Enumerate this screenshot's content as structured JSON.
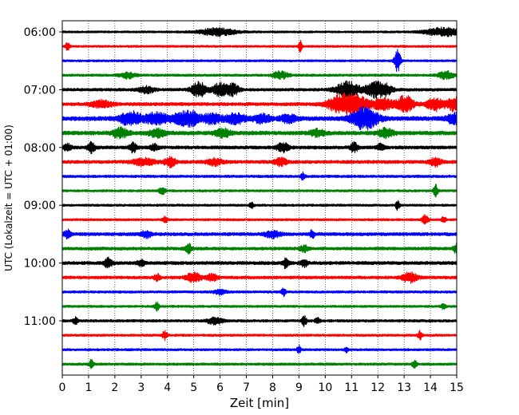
{
  "chart_data": {
    "type": "line",
    "chart_kind": "helicorder (seismogram drum plot)",
    "title": "",
    "xlabel": "Zeit  [min]",
    "ylabel": "UTC (Lokalzeit = UTC + 01:00)",
    "xlim": [
      0,
      15
    ],
    "x_ticks": [
      "0",
      "1",
      "2",
      "3",
      "4",
      "5",
      "6",
      "7",
      "8",
      "9",
      "10",
      "11",
      "12",
      "13",
      "14",
      "15"
    ],
    "y_ticks": [
      "06:00",
      "07:00",
      "08:00",
      "09:00",
      "10:00",
      "11:00"
    ],
    "trace_minutes_per_line": 15,
    "grid": "vertical dotted lines at each minute",
    "legend": "none",
    "color_cycle": [
      "#000000",
      "#ff0000",
      "#0000ff",
      "#008000"
    ],
    "traces": [
      {
        "start": "06:00",
        "color": "#000000",
        "amp": 1.3,
        "events": [
          {
            "t": 5.9,
            "a": 4.5,
            "w": 0.5
          },
          {
            "t": 14.5,
            "a": 5.0,
            "w": 0.5
          }
        ]
      },
      {
        "start": "06:15",
        "color": "#ff0000",
        "amp": 1.3,
        "events": [
          {
            "t": 0.2,
            "a": 5.5,
            "w": 0.05
          },
          {
            "t": 9.05,
            "a": 7.5,
            "w": 0.05
          }
        ]
      },
      {
        "start": "06:30",
        "color": "#0000ff",
        "amp": 1.3,
        "events": [
          {
            "t": 12.75,
            "a": 14.0,
            "w": 0.08
          }
        ]
      },
      {
        "start": "06:45",
        "color": "#008000",
        "amp": 1.5,
        "events": [
          {
            "t": 2.5,
            "a": 3.5,
            "w": 0.2
          },
          {
            "t": 8.3,
            "a": 4.5,
            "w": 0.2
          },
          {
            "t": 14.6,
            "a": 5.0,
            "w": 0.2
          }
        ]
      },
      {
        "start": "07:00",
        "color": "#000000",
        "amp": 1.8,
        "events": [
          {
            "t": 3.2,
            "a": 4.0,
            "w": 0.2
          },
          {
            "t": 5.2,
            "a": 9.0,
            "w": 0.2
          },
          {
            "t": 6.0,
            "a": 8.0,
            "w": 0.2
          },
          {
            "t": 6.5,
            "a": 7.0,
            "w": 0.15
          },
          {
            "t": 10.85,
            "a": 10.0,
            "w": 0.3
          },
          {
            "t": 11.9,
            "a": 9.0,
            "w": 0.25
          },
          {
            "t": 12.3,
            "a": 5.0,
            "w": 0.2
          }
        ]
      },
      {
        "start": "07:15",
        "color": "#ff0000",
        "amp": 2.0,
        "events": [
          {
            "t": 1.5,
            "a": 4.0,
            "w": 0.3
          },
          {
            "t": 10.6,
            "a": 11.0,
            "w": 0.35
          },
          {
            "t": 11.2,
            "a": 9.0,
            "w": 0.3
          },
          {
            "t": 12.2,
            "a": 7.0,
            "w": 0.3
          },
          {
            "t": 13.0,
            "a": 5.0,
            "w": 0.2
          },
          {
            "t": 13.1,
            "a": 6.0,
            "w": 0.2
          },
          {
            "t": 14.2,
            "a": 8.0,
            "w": 0.25
          },
          {
            "t": 14.95,
            "a": 9.0,
            "w": 0.2
          }
        ]
      },
      {
        "start": "07:30",
        "color": "#0000ff",
        "amp": 2.6,
        "events": [
          {
            "t": 2.6,
            "a": 8.0,
            "w": 0.3
          },
          {
            "t": 3.6,
            "a": 7.0,
            "w": 0.3
          },
          {
            "t": 4.6,
            "a": 7.0,
            "w": 0.3
          },
          {
            "t": 5.0,
            "a": 5.0,
            "w": 0.2
          },
          {
            "t": 5.7,
            "a": 6.0,
            "w": 0.25
          },
          {
            "t": 6.6,
            "a": 6.0,
            "w": 0.25
          },
          {
            "t": 7.6,
            "a": 5.0,
            "w": 0.25
          },
          {
            "t": 8.6,
            "a": 5.0,
            "w": 0.2
          },
          {
            "t": 11.5,
            "a": 13.0,
            "w": 0.35
          },
          {
            "t": 14.9,
            "a": 6.0,
            "w": 0.2
          }
        ]
      },
      {
        "start": "07:45",
        "color": "#008000",
        "amp": 2.4,
        "events": [
          {
            "t": 2.2,
            "a": 6.0,
            "w": 0.2
          },
          {
            "t": 3.6,
            "a": 5.0,
            "w": 0.2
          },
          {
            "t": 6.1,
            "a": 5.0,
            "w": 0.2
          },
          {
            "t": 9.7,
            "a": 4.0,
            "w": 0.2
          },
          {
            "t": 12.3,
            "a": 5.0,
            "w": 0.2
          }
        ]
      },
      {
        "start": "08:00",
        "color": "#000000",
        "amp": 2.0,
        "events": [
          {
            "t": 0.2,
            "a": 4.0,
            "w": 0.1
          },
          {
            "t": 1.1,
            "a": 6.0,
            "w": 0.1
          },
          {
            "t": 2.7,
            "a": 6.0,
            "w": 0.1
          },
          {
            "t": 3.5,
            "a": 4.0,
            "w": 0.1
          },
          {
            "t": 8.4,
            "a": 6.0,
            "w": 0.15
          },
          {
            "t": 11.1,
            "a": 6.0,
            "w": 0.1
          },
          {
            "t": 12.1,
            "a": 4.0,
            "w": 0.1
          }
        ]
      },
      {
        "start": "08:15",
        "color": "#ff0000",
        "amp": 2.0,
        "events": [
          {
            "t": 3.1,
            "a": 4.0,
            "w": 0.3
          },
          {
            "t": 4.1,
            "a": 6.0,
            "w": 0.15
          },
          {
            "t": 5.8,
            "a": 4.0,
            "w": 0.2
          },
          {
            "t": 8.3,
            "a": 5.0,
            "w": 0.15
          },
          {
            "t": 14.2,
            "a": 5.0,
            "w": 0.15
          }
        ]
      },
      {
        "start": "08:30",
        "color": "#0000ff",
        "amp": 1.6,
        "events": [
          {
            "t": 9.15,
            "a": 5.0,
            "w": 0.05
          }
        ]
      },
      {
        "start": "08:45",
        "color": "#008000",
        "amp": 1.4,
        "events": [
          {
            "t": 3.8,
            "a": 5.0,
            "w": 0.08
          },
          {
            "t": 14.2,
            "a": 8.0,
            "w": 0.06
          }
        ]
      },
      {
        "start": "09:00",
        "color": "#000000",
        "amp": 1.4,
        "events": [
          {
            "t": 7.2,
            "a": 5.0,
            "w": 0.05
          },
          {
            "t": 12.75,
            "a": 6.0,
            "w": 0.05
          }
        ]
      },
      {
        "start": "09:15",
        "color": "#ff0000",
        "amp": 1.4,
        "events": [
          {
            "t": 3.9,
            "a": 4.0,
            "w": 0.06
          },
          {
            "t": 13.8,
            "a": 6.0,
            "w": 0.08
          },
          {
            "t": 14.5,
            "a": 4.0,
            "w": 0.06
          }
        ]
      },
      {
        "start": "09:30",
        "color": "#0000ff",
        "amp": 2.0,
        "events": [
          {
            "t": 0.2,
            "a": 5.0,
            "w": 0.08
          },
          {
            "t": 3.2,
            "a": 4.0,
            "w": 0.15
          },
          {
            "t": 8.0,
            "a": 4.0,
            "w": 0.2
          },
          {
            "t": 9.5,
            "a": 5.0,
            "w": 0.06
          }
        ]
      },
      {
        "start": "09:45",
        "color": "#008000",
        "amp": 1.9,
        "events": [
          {
            "t": 4.8,
            "a": 6.0,
            "w": 0.08
          },
          {
            "t": 9.2,
            "a": 4.0,
            "w": 0.1
          },
          {
            "t": 14.95,
            "a": 6.0,
            "w": 0.06
          }
        ]
      },
      {
        "start": "10:00",
        "color": "#000000",
        "amp": 2.0,
        "events": [
          {
            "t": 1.75,
            "a": 6.0,
            "w": 0.1
          },
          {
            "t": 3.0,
            "a": 3.5,
            "w": 0.1
          },
          {
            "t": 8.5,
            "a": 6.0,
            "w": 0.08
          },
          {
            "t": 9.2,
            "a": 4.0,
            "w": 0.1
          }
        ]
      },
      {
        "start": "10:15",
        "color": "#ff0000",
        "amp": 1.8,
        "events": [
          {
            "t": 3.6,
            "a": 4.0,
            "w": 0.08
          },
          {
            "t": 5.0,
            "a": 5.5,
            "w": 0.2
          },
          {
            "t": 5.7,
            "a": 4.0,
            "w": 0.15
          },
          {
            "t": 13.2,
            "a": 6.0,
            "w": 0.2
          }
        ]
      },
      {
        "start": "10:30",
        "color": "#0000ff",
        "amp": 1.5,
        "events": [
          {
            "t": 8.4,
            "a": 5.0,
            "w": 0.06
          },
          {
            "t": 6.0,
            "a": 3.0,
            "w": 0.15
          }
        ]
      },
      {
        "start": "10:45",
        "color": "#008000",
        "amp": 1.4,
        "events": [
          {
            "t": 3.6,
            "a": 5.0,
            "w": 0.06
          },
          {
            "t": 14.5,
            "a": 4.0,
            "w": 0.06
          }
        ]
      },
      {
        "start": "11:00",
        "color": "#000000",
        "amp": 1.6,
        "events": [
          {
            "t": 0.5,
            "a": 4.0,
            "w": 0.06
          },
          {
            "t": 5.8,
            "a": 4.0,
            "w": 0.2
          },
          {
            "t": 9.2,
            "a": 6.0,
            "w": 0.06
          },
          {
            "t": 9.7,
            "a": 4.0,
            "w": 0.06
          }
        ]
      },
      {
        "start": "11:15",
        "color": "#ff0000",
        "amp": 1.4,
        "events": [
          {
            "t": 3.9,
            "a": 6.0,
            "w": 0.06
          },
          {
            "t": 13.6,
            "a": 5.0,
            "w": 0.06
          }
        ]
      },
      {
        "start": "11:30",
        "color": "#0000ff",
        "amp": 1.4,
        "events": [
          {
            "t": 9.0,
            "a": 5.0,
            "w": 0.05
          },
          {
            "t": 10.8,
            "a": 3.0,
            "w": 0.05
          }
        ]
      },
      {
        "start": "11:45",
        "color": "#008000",
        "amp": 1.5,
        "events": [
          {
            "t": 1.1,
            "a": 5.0,
            "w": 0.06
          },
          {
            "t": 13.4,
            "a": 5.0,
            "w": 0.06
          }
        ]
      }
    ]
  }
}
